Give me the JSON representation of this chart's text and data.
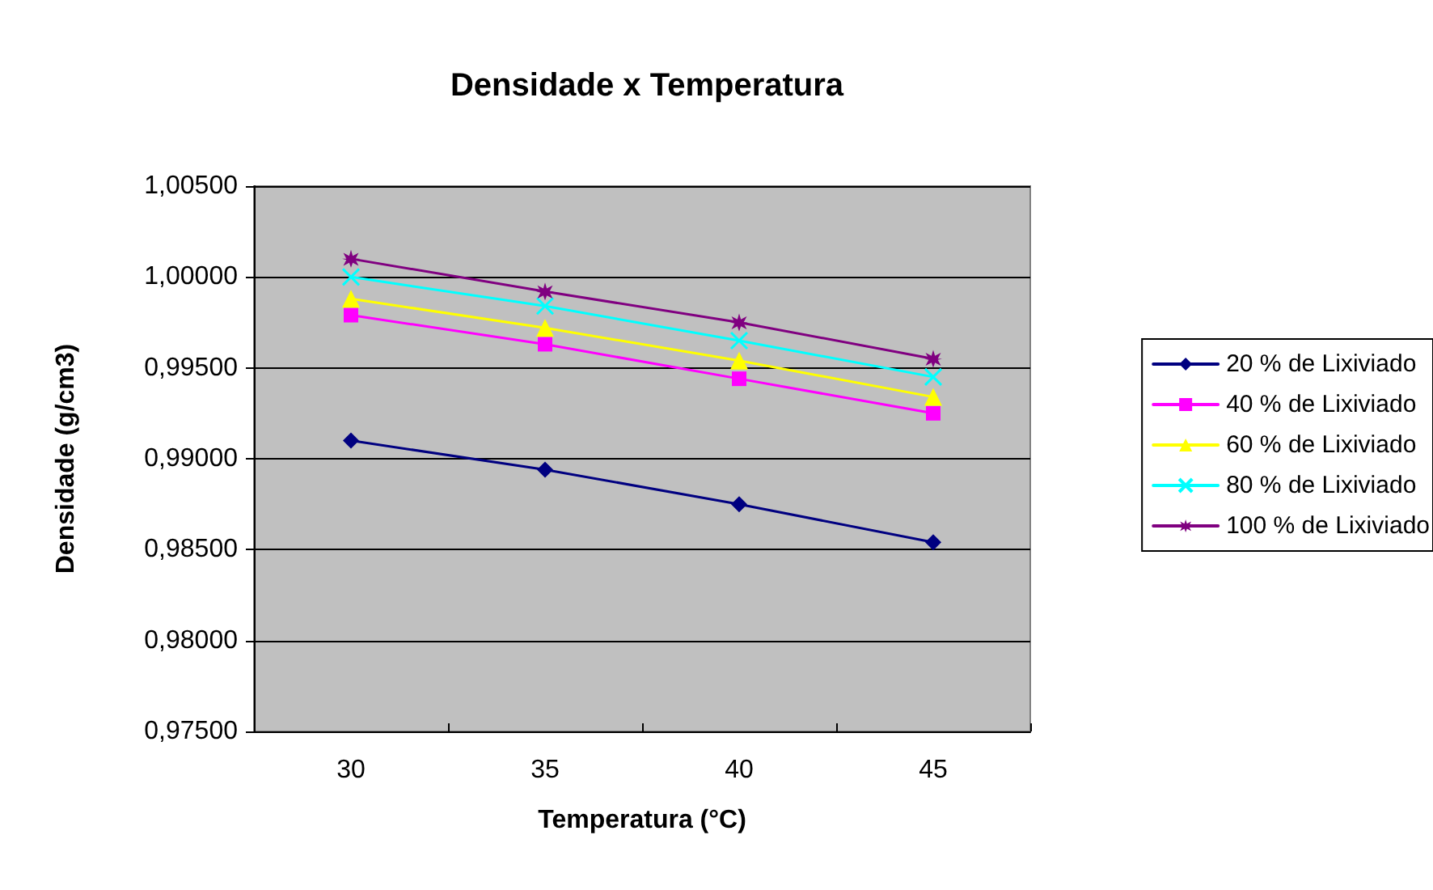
{
  "chart_data": {
    "type": "line",
    "title": "Densidade x Temperatura",
    "xlabel": "Temperatura (°C)",
    "ylabel": "Densidade (g/cm3)",
    "categories": [
      "30",
      "35",
      "40",
      "45"
    ],
    "series": [
      {
        "name": "20 % de Lixiviado",
        "color": "#000080",
        "marker": "diamond",
        "values": [
          0.991,
          0.9894,
          0.9875,
          0.9854
        ]
      },
      {
        "name": "40 % de Lixiviado",
        "color": "#ff00ff",
        "marker": "square",
        "values": [
          0.9979,
          0.9963,
          0.9944,
          0.9925
        ]
      },
      {
        "name": "60 % de Lixiviado",
        "color": "#ffff00",
        "marker": "triangle",
        "values": [
          0.9988,
          0.9972,
          0.9954,
          0.9934
        ]
      },
      {
        "name": "80 % de Lixiviado",
        "color": "#00ffff",
        "marker": "cross",
        "values": [
          1.0,
          0.9984,
          0.9965,
          0.9945
        ]
      },
      {
        "name": "100 % de Lixiviado",
        "color": "#800080",
        "marker": "star",
        "values": [
          1.001,
          0.9992,
          0.9975,
          0.9955
        ]
      }
    ],
    "ylim": [
      0.975,
      1.005
    ],
    "yticks": [
      {
        "value": 0.975,
        "label": "0,97500"
      },
      {
        "value": 0.98,
        "label": "0,98000"
      },
      {
        "value": 0.985,
        "label": "0,98500"
      },
      {
        "value": 0.99,
        "label": "0,99000"
      },
      {
        "value": 0.995,
        "label": "0,99500"
      },
      {
        "value": 1.0,
        "label": "1,00000"
      },
      {
        "value": 1.005,
        "label": "1,00500"
      }
    ],
    "grid": "y",
    "legend": "right",
    "line_style": "solid"
  }
}
